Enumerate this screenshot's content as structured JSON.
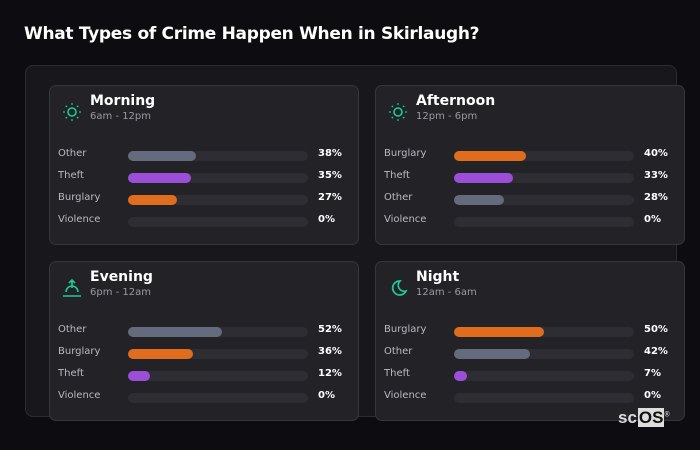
{
  "title": "What Types of Crime Happen When in Skirlaugh?",
  "colors": {
    "Other": "#636b7c",
    "Theft": "#9b4fd8",
    "Burglary": "#e06c1e",
    "Violence": "#c0392b",
    "accent": "#1fc99a"
  },
  "logo": {
    "a": "sc",
    "b": "OS",
    "mark": "®"
  },
  "chart_data": [
    {
      "type": "bar",
      "title": "Morning",
      "subtitle": "6am - 12pm",
      "icon": "sun-icon",
      "categories": [
        "Other",
        "Theft",
        "Burglary",
        "Violence"
      ],
      "values": [
        38,
        35,
        27,
        0
      ],
      "labels": [
        "38%",
        "35%",
        "27%",
        "0%"
      ],
      "xlim": [
        0,
        100
      ]
    },
    {
      "type": "bar",
      "title": "Afternoon",
      "subtitle": "12pm - 6pm",
      "icon": "sun-icon",
      "categories": [
        "Burglary",
        "Theft",
        "Other",
        "Violence"
      ],
      "values": [
        40,
        33,
        28,
        0
      ],
      "labels": [
        "40%",
        "33%",
        "28%",
        "0%"
      ],
      "xlim": [
        0,
        100
      ]
    },
    {
      "type": "bar",
      "title": "Evening",
      "subtitle": "6pm - 12am",
      "icon": "sunset-icon",
      "categories": [
        "Other",
        "Burglary",
        "Theft",
        "Violence"
      ],
      "values": [
        52,
        36,
        12,
        0
      ],
      "labels": [
        "52%",
        "36%",
        "12%",
        "0%"
      ],
      "xlim": [
        0,
        100
      ]
    },
    {
      "type": "bar",
      "title": "Night",
      "subtitle": "12am - 6am",
      "icon": "moon-icon",
      "categories": [
        "Burglary",
        "Other",
        "Theft",
        "Violence"
      ],
      "values": [
        50,
        42,
        7,
        0
      ],
      "labels": [
        "50%",
        "42%",
        "7%",
        "0%"
      ],
      "xlim": [
        0,
        100
      ]
    }
  ]
}
